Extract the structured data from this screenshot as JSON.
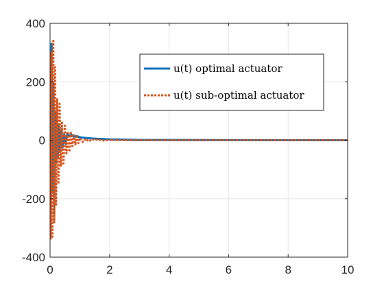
{
  "chart_data": {
    "type": "line",
    "xlim": [
      0,
      10
    ],
    "ylim": [
      -400,
      400
    ],
    "x_ticks": [
      0,
      2,
      4,
      6,
      8,
      10
    ],
    "y_ticks": [
      -400,
      -200,
      0,
      200,
      400
    ],
    "x_tick_labels": [
      "0",
      "2",
      "4",
      "6",
      "8",
      "10"
    ],
    "y_tick_labels": [
      "-400",
      "-200",
      "0",
      "200",
      "400"
    ],
    "grid": true,
    "legend_position": "upper-right",
    "series": [
      {
        "name": "u(t) optimal actuator",
        "color": "#0072BD",
        "style": "solid",
        "x": [
          0,
          0.02,
          0.05,
          0.08,
          0.11,
          0.14,
          0.17,
          0.2,
          0.23,
          0.26,
          0.3,
          0.34,
          0.38,
          0.42,
          0.47,
          0.52,
          0.58,
          0.65,
          0.72,
          0.8,
          0.9,
          1.0,
          1.1,
          1.2,
          1.3,
          1.4,
          1.6,
          1.8,
          2.0,
          2.5,
          3.0,
          10.0
        ],
        "y": [
          0,
          -180,
          330,
          -180,
          200,
          -250,
          100,
          -80,
          90,
          -60,
          50,
          -40,
          35,
          -25,
          20,
          -12,
          22,
          15,
          18,
          12,
          14,
          10,
          9,
          8,
          7,
          6,
          5,
          4,
          3,
          2,
          1,
          0
        ]
      },
      {
        "name": "u(t) sub-optimal actuator",
        "color": "#D95319",
        "style": "dotted",
        "x": [
          0,
          0.02,
          0.05,
          0.08,
          0.11,
          0.14,
          0.17,
          0.2,
          0.24,
          0.28,
          0.32,
          0.36,
          0.4,
          0.45,
          0.5,
          0.55,
          0.6,
          0.65,
          0.7,
          0.75,
          0.8,
          0.85,
          0.9,
          0.95,
          1.0,
          1.1,
          1.2,
          1.3,
          1.4,
          1.6,
          1.8,
          2.0,
          2.5,
          3.0,
          10.0
        ],
        "y": [
          0,
          -340,
          300,
          -330,
          345,
          -280,
          250,
          -220,
          140,
          -150,
          125,
          -90,
          60,
          -85,
          50,
          -45,
          30,
          -40,
          25,
          -20,
          22,
          -15,
          12,
          -10,
          8,
          -6,
          5,
          -4,
          3,
          2,
          -1,
          1,
          0,
          0,
          0
        ]
      }
    ]
  }
}
